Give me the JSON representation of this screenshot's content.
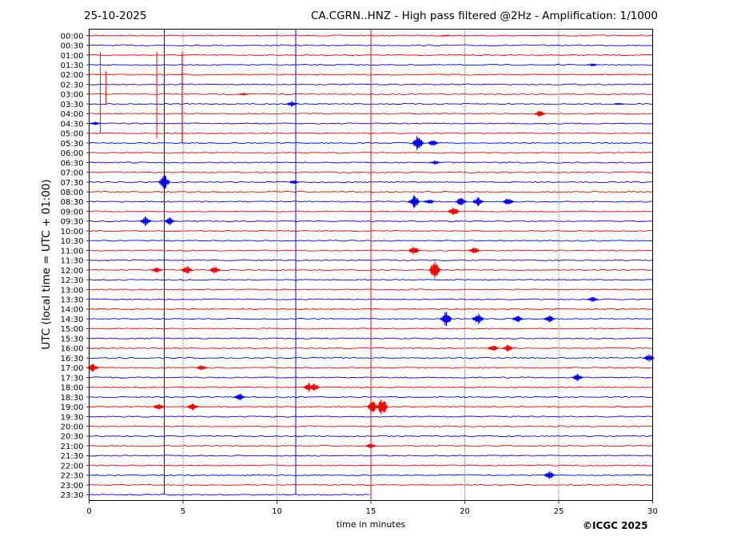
{
  "header": {
    "date": "25-10-2025",
    "title": "CA.CGRN..HNZ - High pass filtered @2Hz - Amplification: 1/1000"
  },
  "copyright": "©ICGC 2025",
  "chart_data": {
    "type": "line",
    "title": "CA.CGRN..HNZ - High pass filtered @2Hz - Amplification: 1/1000",
    "xlabel": "time in minutes",
    "ylabel": "UTC (local time = UTC + 01:00)",
    "xlim": [
      0,
      30
    ],
    "x_ticks": [
      0,
      5,
      10,
      15,
      20,
      25,
      30
    ],
    "x_tick_labels": [
      "0",
      "5",
      "10",
      "15",
      "20",
      "25",
      "30"
    ],
    "grid": "vertical dotted",
    "row_labels": [
      "00:00",
      "00:30",
      "01:00",
      "01:30",
      "02:00",
      "02:30",
      "03:00",
      "03:30",
      "04:00",
      "04:30",
      "05:00",
      "05:30",
      "06:00",
      "06:30",
      "07:00",
      "07:30",
      "08:00",
      "08:30",
      "09:00",
      "09:30",
      "10:00",
      "10:30",
      "11:00",
      "11:30",
      "12:00",
      "12:30",
      "13:00",
      "13:30",
      "14:00",
      "14:30",
      "15:00",
      "15:30",
      "16:00",
      "16:30",
      "17:00",
      "17:30",
      "18:00",
      "18:30",
      "19:00",
      "19:30",
      "20:00",
      "20:30",
      "21:00",
      "21:30",
      "22:00",
      "22:30",
      "23:00",
      "23:30"
    ],
    "colors": [
      "#ff0000",
      "#0000ff"
    ],
    "last_row_end_minute": 15,
    "events": [
      {
        "row": 0,
        "t": 19.0,
        "a": 1.5
      },
      {
        "row": 3,
        "t": 26.8,
        "a": 2.5
      },
      {
        "row": 6,
        "t": 8.2,
        "a": 2
      },
      {
        "row": 7,
        "t": 10.8,
        "a": 4
      },
      {
        "row": 7,
        "t": 28.2,
        "a": 2
      },
      {
        "row": 8,
        "t": 24.0,
        "a": 5
      },
      {
        "row": 9,
        "t": 0.3,
        "a": 3
      },
      {
        "row": 11,
        "t": 17.5,
        "a": 11
      },
      {
        "row": 11,
        "t": 18.3,
        "a": 5
      },
      {
        "row": 13,
        "t": 18.4,
        "a": 3
      },
      {
        "row": 15,
        "t": 4.0,
        "a": 10
      },
      {
        "row": 15,
        "t": 10.9,
        "a": 3
      },
      {
        "row": 17,
        "t": 17.3,
        "a": 9
      },
      {
        "row": 17,
        "t": 18.1,
        "a": 4
      },
      {
        "row": 17,
        "t": 19.8,
        "a": 6
      },
      {
        "row": 17,
        "t": 20.7,
        "a": 6
      },
      {
        "row": 17,
        "t": 22.3,
        "a": 5
      },
      {
        "row": 18,
        "t": 19.4,
        "a": 6
      },
      {
        "row": 19,
        "t": 3.0,
        "a": 6
      },
      {
        "row": 19,
        "t": 4.3,
        "a": 5
      },
      {
        "row": 22,
        "t": 17.3,
        "a": 6
      },
      {
        "row": 22,
        "t": 20.5,
        "a": 5
      },
      {
        "row": 24,
        "t": 3.6,
        "a": 4
      },
      {
        "row": 24,
        "t": 5.2,
        "a": 6
      },
      {
        "row": 24,
        "t": 6.7,
        "a": 5
      },
      {
        "row": 24,
        "t": 18.4,
        "a": 12
      },
      {
        "row": 27,
        "t": 26.8,
        "a": 4
      },
      {
        "row": 29,
        "t": 19.0,
        "a": 10
      },
      {
        "row": 29,
        "t": 20.7,
        "a": 8
      },
      {
        "row": 29,
        "t": 22.8,
        "a": 5
      },
      {
        "row": 29,
        "t": 24.5,
        "a": 5
      },
      {
        "row": 32,
        "t": 21.5,
        "a": 5
      },
      {
        "row": 32,
        "t": 22.3,
        "a": 5
      },
      {
        "row": 33,
        "t": 29.8,
        "a": 5
      },
      {
        "row": 34,
        "t": 0.2,
        "a": 6
      },
      {
        "row": 34,
        "t": 6.0,
        "a": 4
      },
      {
        "row": 35,
        "t": 26.0,
        "a": 5
      },
      {
        "row": 36,
        "t": 11.7,
        "a": 6
      },
      {
        "row": 36,
        "t": 12.0,
        "a": 5
      },
      {
        "row": 37,
        "t": 8.0,
        "a": 5
      },
      {
        "row": 38,
        "t": 3.7,
        "a": 5
      },
      {
        "row": 38,
        "t": 5.5,
        "a": 5
      },
      {
        "row": 38,
        "t": 15.1,
        "a": 8
      },
      {
        "row": 38,
        "t": 15.6,
        "a": 12
      },
      {
        "row": 42,
        "t": 15.0,
        "a": 4
      },
      {
        "row": 45,
        "t": 24.5,
        "a": 6
      }
    ],
    "spikes": [
      {
        "row": 2,
        "t": 3.6,
        "span": 8.5
      },
      {
        "row": 2,
        "t": 4.95,
        "span": 9
      },
      {
        "row": 2,
        "t": 0.6,
        "span": 8
      },
      {
        "row": 4,
        "t": 0.9,
        "span": 3
      },
      {
        "row": 14,
        "t": 4.0,
        "span": 8
      },
      {
        "row": 30,
        "t": 4.0,
        "span": 0
      },
      {
        "row": 0,
        "t": 4.0,
        "span": 47
      },
      {
        "row": 0,
        "t": 11.0,
        "span": 47
      },
      {
        "row": 0,
        "t": 15.0,
        "span": 48
      }
    ]
  }
}
